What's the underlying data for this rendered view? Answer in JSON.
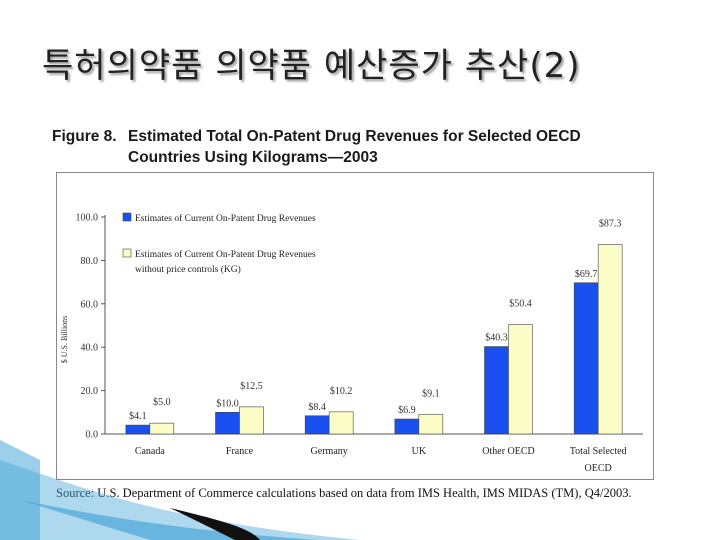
{
  "slide": {
    "title": "특허의약품 의약품 예산증가 추산(2)"
  },
  "figure": {
    "number": "Figure 8.",
    "title_line1": "Estimated Total On-Patent Drug Revenues for Selected OECD",
    "title_line2": "Countries Using Kilograms—2003",
    "source": "Source:  U.S. Department of Commerce calculations based on data from IMS Health, IMS MIDAS (TM), Q4/2003."
  },
  "colors": {
    "series1": "#1a4ff0",
    "series2": "#fdfdc8",
    "axis": "#555555",
    "deco_blue": "#4aa8d8",
    "deco_dark": "#111111"
  },
  "chart_data": {
    "type": "bar",
    "categories": [
      "Canada",
      "France",
      "Germany",
      "UK",
      "Other OECD",
      "Total Selected OECD"
    ],
    "series": [
      {
        "name": "Estimates of Current On-Patent Drug Revenues",
        "values": [
          4.1,
          10.0,
          8.4,
          6.9,
          40.3,
          69.7
        ],
        "labels": [
          "$4.1",
          "$10.0",
          "$8.4",
          "$6.9",
          "$40.3",
          "$69.7"
        ]
      },
      {
        "name": "Estimates of Current On-Patent Drug Revenues without price controls (KG)",
        "values": [
          5.0,
          12.5,
          10.2,
          9.1,
          50.4,
          87.3
        ],
        "labels": [
          "$5.0",
          "$12.5",
          "$10.2",
          "$9.1",
          "$50.4",
          "$87.3"
        ]
      }
    ],
    "ylabel": "$ U.S. Billions",
    "ylim": [
      0,
      100
    ],
    "yticks": [
      0,
      20,
      40,
      60,
      80,
      100
    ],
    "ytick_labels": [
      "0.0",
      "20.0",
      "40.0",
      "60.0",
      "80.0",
      "100.0"
    ],
    "legend": "top-left",
    "grid": false
  }
}
